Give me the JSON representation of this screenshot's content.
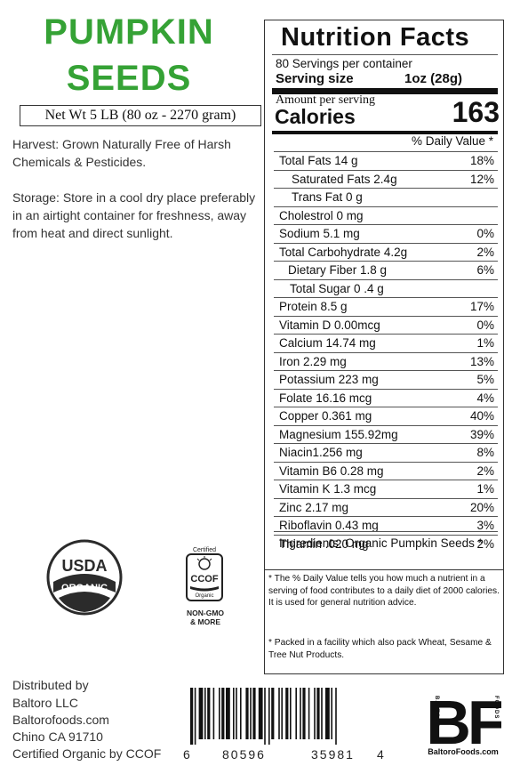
{
  "product": {
    "title_line1": "PUMPKIN",
    "title_line2": "SEEDS",
    "net_weight": "Net Wt 5 LB (80 oz - 2270 gram)",
    "harvest": "Harvest:  Grown Naturally Free of Harsh Chemicals  & Pesticides.",
    "storage": "Storage: Store in a cool dry place preferably in an airtight container for freshness, away from heat and direct sunlight."
  },
  "nutrition": {
    "title": "Nutrition  Facts",
    "servings_per_container": "80 Servings per container",
    "serving_size_label": "Serving size",
    "serving_size_value": "1oz  (28g)",
    "amount_per_serving": "Amount per serving",
    "calories_label": "Calories",
    "calories_value": "163",
    "daily_value_header": "% Daily Value *",
    "nutrients": [
      {
        "name": "Total Fats 14 g",
        "pct": "18%"
      },
      {
        "name": "Saturated Fats 2.4g",
        "pct": "12%"
      },
      {
        "name": "Trans Fat 0 g",
        "pct": ""
      },
      {
        "name": "Cholestrol 0 mg",
        "pct": ""
      },
      {
        "name": "Sodium 5.1 mg",
        "pct": "0%"
      },
      {
        "name": "Total Carbohydrate 4.2g",
        "pct": "2%"
      },
      {
        "name": "Dietary Fiber 1.8 g",
        "pct": "6%"
      },
      {
        "name": "Total Sugar 0 .4 g",
        "pct": ""
      },
      {
        "name": "Protein 8.5 g",
        "pct": "17%"
      },
      {
        "name": "Vitamin D 0.00mcg",
        "pct": "0%"
      },
      {
        "name": "Calcium 14.74 mg",
        "pct": "1%"
      },
      {
        "name": "Iron 2.29 mg",
        "pct": "13%"
      },
      {
        "name": "Potassium 223 mg",
        "pct": "5%"
      },
      {
        "name": "Folate 16.16 mcg",
        "pct": "4%"
      },
      {
        "name": "Copper 0.361 mg",
        "pct": "40%"
      },
      {
        "name": "Magnesium 155.92mg",
        "pct": "39%"
      },
      {
        "name": "Niacin1.256 mg",
        "pct": "8%"
      },
      {
        "name": "Vitamin B6 0.28 mg",
        "pct": "2%"
      },
      {
        "name": "Vitamin K 1.3 mcg",
        "pct": "1%"
      },
      {
        "name": "Zinc 2.17  mg",
        "pct": "20%"
      },
      {
        "name": "Riboflavin 0.43 mg",
        "pct": "3%"
      },
      {
        "name": "Thiamin .020 mg",
        "pct": "2%"
      }
    ],
    "ingredients": "Ingredients:  Organic Pumpkin Seeds *",
    "footnote_daily_value": "* The % Daily Value tells you how much a nutrient in a serving of food contributes to a daily diet of 2000 calories. It is used for general nutrition advice.",
    "footnote_facility": "*  Packed in a facility which also pack Wheat, Sesame & Tree Nut Products."
  },
  "certifications": {
    "usda_top": "USDA",
    "usda_band": "ORGANIC",
    "ccof_certified": "Certified",
    "ccof_name": "CCOF",
    "ccof_organic": "Organic",
    "ccof_nongmo_1": "NON-GMO",
    "ccof_nongmo_2": "& MORE"
  },
  "distributor": {
    "line1": "Distributed by",
    "line2": "Baltoro LLC",
    "line3": "Baltorofoods.com",
    "line4": "Chino CA 91710",
    "line5": "Certified Organic by  CCOF"
  },
  "barcode": {
    "digit_first": "6",
    "group1": "80596",
    "group2": "35981",
    "digit_last": "4"
  },
  "brand": {
    "logo_letters": "BF",
    "side_left": "BALTORO",
    "side_right": "FOODS",
    "url": "BaltoroFoods.com"
  }
}
